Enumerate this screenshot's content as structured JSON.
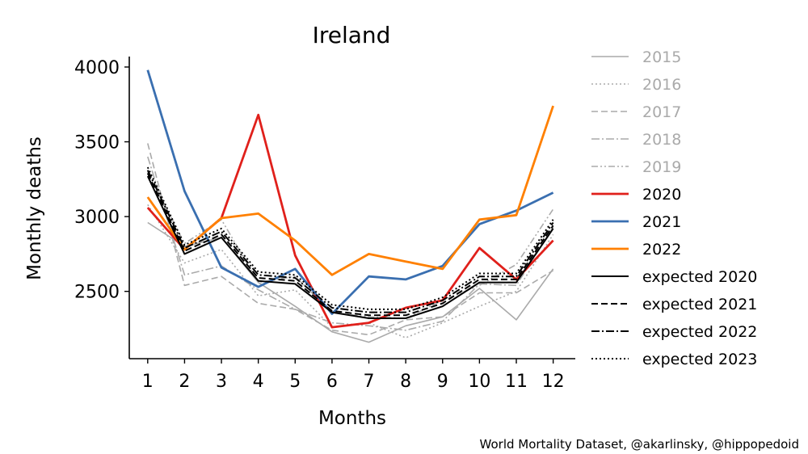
{
  "chart_data": {
    "type": "line",
    "title": "Ireland",
    "xlabel": "Months",
    "ylabel": "Monthly deaths",
    "x": [
      1,
      2,
      3,
      4,
      5,
      6,
      7,
      8,
      9,
      10,
      11,
      12
    ],
    "xlim": [
      0.5,
      12.6
    ],
    "ylim": [
      2050,
      4070
    ],
    "yticks": [
      2500,
      3000,
      3500,
      4000
    ],
    "grid": false,
    "legend_position": "right",
    "series": [
      {
        "name": "2015",
        "color": "#aaaaaa",
        "dash": "solid",
        "width": "thin",
        "values": [
          2960,
          2800,
          2860,
          2560,
          2400,
          2230,
          2160,
          2270,
          2330,
          2520,
          2310,
          2650
        ]
      },
      {
        "name": "2016",
        "color": "#aaaaaa",
        "dash": "dotted",
        "width": "thin",
        "values": [
          3080,
          2690,
          2780,
          2470,
          2510,
          2260,
          2290,
          2190,
          2290,
          2400,
          2500,
          2880
        ]
      },
      {
        "name": "2017",
        "color": "#aaaaaa",
        "dash": "dashed",
        "width": "thin",
        "values": [
          3490,
          2540,
          2600,
          2420,
          2380,
          2240,
          2210,
          2310,
          2330,
          2490,
          2490,
          2640
        ]
      },
      {
        "name": "2018",
        "color": "#aaaaaa",
        "dash": "dashdot",
        "width": "thin",
        "values": [
          3400,
          2610,
          2670,
          2510,
          2380,
          2290,
          2270,
          2240,
          2300,
          2550,
          2540,
          2930
        ]
      },
      {
        "name": "2019",
        "color": "#aaaaaa",
        "dash": "dashdotdot",
        "width": "thin",
        "values": [
          3300,
          2820,
          2980,
          2560,
          2600,
          2360,
          2330,
          2320,
          2440,
          2540,
          2680,
          3050
        ]
      },
      {
        "name": "2020",
        "color": "#e0201b",
        "dash": "solid",
        "width": "thick",
        "values": [
          3060,
          2780,
          2990,
          3680,
          2740,
          2260,
          2290,
          2390,
          2440,
          2790,
          2580,
          2840
        ]
      },
      {
        "name": "2021",
        "color": "#3a6fb0",
        "dash": "solid",
        "width": "thick",
        "values": [
          3980,
          3170,
          2660,
          2530,
          2650,
          2350,
          2600,
          2580,
          2670,
          2950,
          3040,
          3160
        ]
      },
      {
        "name": "2022",
        "color": "#ff8000",
        "dash": "solid",
        "width": "thick",
        "values": [
          3130,
          2780,
          2990,
          3020,
          2840,
          2610,
          2750,
          2700,
          2650,
          2980,
          3010,
          3740
        ]
      },
      {
        "name": "expected 2020",
        "color": "#000000",
        "dash": "solid",
        "width": "medium",
        "values": [
          3270,
          2750,
          2860,
          2570,
          2550,
          2360,
          2320,
          2320,
          2400,
          2560,
          2560,
          2920
        ]
      },
      {
        "name": "expected 2021",
        "color": "#000000",
        "dash": "dashed",
        "width": "medium",
        "values": [
          3290,
          2770,
          2880,
          2590,
          2570,
          2370,
          2340,
          2340,
          2420,
          2580,
          2580,
          2940
        ]
      },
      {
        "name": "expected 2022",
        "color": "#000000",
        "dash": "dashdot",
        "width": "medium",
        "values": [
          3310,
          2790,
          2900,
          2610,
          2590,
          2390,
          2360,
          2360,
          2440,
          2600,
          2600,
          2960
        ]
      },
      {
        "name": "expected 2023",
        "color": "#000000",
        "dash": "dotted",
        "width": "medium",
        "values": [
          3330,
          2810,
          2920,
          2630,
          2610,
          2410,
          2380,
          2380,
          2460,
          2620,
          2620,
          2980
        ]
      }
    ],
    "annotation": "World Mortality Dataset, @akarlinsky, @hippopedoid"
  }
}
